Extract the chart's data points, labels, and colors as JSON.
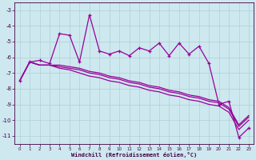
{
  "bg_color": "#cde8ef",
  "line_color": "#990099",
  "grid_color": "#b0d0d8",
  "xlabel": "Windchill (Refroidissement éolien,°C)",
  "x_values": [
    0,
    1,
    2,
    3,
    4,
    5,
    6,
    7,
    8,
    9,
    10,
    11,
    12,
    13,
    14,
    15,
    16,
    17,
    18,
    19,
    20,
    21,
    22,
    23
  ],
  "series1": [
    -7.5,
    -6.3,
    -6.2,
    -6.4,
    -4.5,
    -4.6,
    -6.3,
    -3.3,
    -5.6,
    -5.8,
    -5.6,
    -5.9,
    -5.4,
    -5.6,
    -5.1,
    -5.9,
    -5.1,
    -5.8,
    -5.3,
    -6.4,
    -9.0,
    -8.8,
    -11.1,
    -10.5
  ],
  "series2": [
    -7.5,
    -6.3,
    -6.5,
    -6.5,
    -6.5,
    -6.6,
    -6.7,
    -6.9,
    -7.0,
    -7.2,
    -7.3,
    -7.5,
    -7.6,
    -7.8,
    -7.9,
    -8.1,
    -8.2,
    -8.4,
    -8.5,
    -8.7,
    -8.8,
    -9.2,
    -10.3,
    -9.7
  ],
  "series3": [
    -7.5,
    -6.3,
    -6.5,
    -6.5,
    -6.6,
    -6.7,
    -6.8,
    -7.0,
    -7.1,
    -7.3,
    -7.4,
    -7.6,
    -7.7,
    -7.9,
    -8.0,
    -8.2,
    -8.3,
    -8.5,
    -8.6,
    -8.8,
    -8.9,
    -9.3,
    -10.4,
    -9.8
  ],
  "series4": [
    -7.5,
    -6.3,
    -6.5,
    -6.5,
    -6.7,
    -6.8,
    -7.0,
    -7.2,
    -7.3,
    -7.5,
    -7.6,
    -7.8,
    -7.9,
    -8.1,
    -8.2,
    -8.4,
    -8.5,
    -8.7,
    -8.8,
    -9.0,
    -9.1,
    -9.5,
    -10.6,
    -10.0
  ],
  "ylim": [
    -11.5,
    -2.5
  ],
  "yticks": [
    -11,
    -10,
    -9,
    -8,
    -7,
    -6,
    -5,
    -4,
    -3
  ],
  "xlim": [
    -0.5,
    23.5
  ],
  "figwidth": 3.2,
  "figheight": 2.0,
  "dpi": 100
}
